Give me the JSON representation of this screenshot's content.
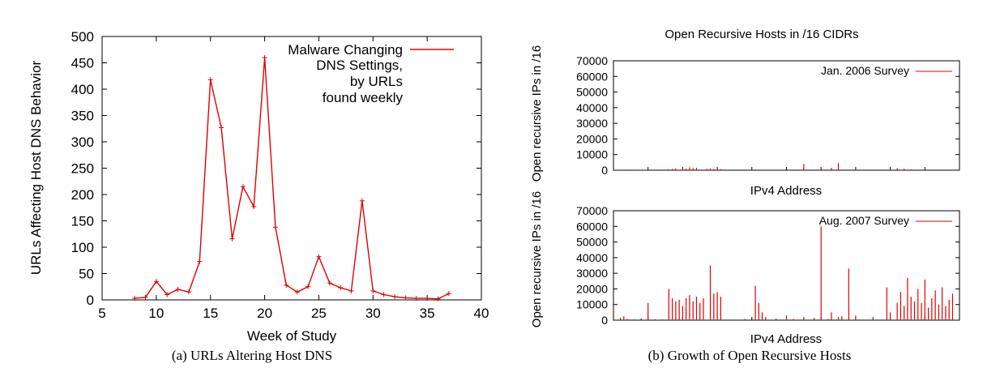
{
  "colors": {
    "series": "#e00000",
    "axis": "#000000"
  },
  "captions": {
    "a": "(a)  URLs Altering Host DNS",
    "b": "(b)  Growth of Open Recursive Hosts"
  },
  "chart_data": [
    {
      "type": "line",
      "title": "",
      "xlabel": "Week of Study",
      "ylabel": "URLs Affecting Host DNS Behavior",
      "xlim": [
        5,
        40
      ],
      "ylim": [
        0,
        500
      ],
      "xticks": [
        5,
        10,
        15,
        20,
        25,
        30,
        35,
        40
      ],
      "yticks": [
        0,
        50,
        100,
        150,
        200,
        250,
        300,
        350,
        400,
        450,
        500
      ],
      "legend_position": "top-right",
      "series": [
        {
          "name": "Malware Changing DNS Settings, by URLs found weekly",
          "legend_lines": [
            "Malware Changing",
            "DNS Settings,",
            "by URLs",
            "found weekly"
          ],
          "x": [
            8,
            9,
            10,
            11,
            12,
            13,
            14,
            15,
            16,
            17,
            18,
            19,
            20,
            21,
            22,
            23,
            24,
            25,
            26,
            27,
            28,
            29,
            30,
            31,
            32,
            33,
            34,
            35,
            36,
            37
          ],
          "y": [
            3,
            5,
            35,
            10,
            20,
            15,
            73,
            418,
            327,
            116,
            215,
            177,
            460,
            138,
            28,
            15,
            25,
            82,
            32,
            23,
            17,
            188,
            17,
            10,
            6,
            4,
            3,
            3,
            2,
            12
          ]
        }
      ]
    },
    {
      "type": "bar",
      "title": "Open Recursive Hosts in /16 CIDRs",
      "xlabel": "IPv4 Address",
      "ylabel": "Open recursive IPs in /16",
      "ylim": [
        0,
        70000
      ],
      "yticks": [
        0,
        10000,
        20000,
        30000,
        40000,
        50000,
        60000,
        70000
      ],
      "series": [
        {
          "name": "Jan. 2006 Survey",
          "x": [
            0.03,
            0.06,
            0.09,
            0.095,
            0.1,
            0.13,
            0.16,
            0.17,
            0.18,
            0.2,
            0.21,
            0.22,
            0.23,
            0.24,
            0.27,
            0.28,
            0.29,
            0.3,
            0.31,
            0.4,
            0.43,
            0.45,
            0.47,
            0.49,
            0.55,
            0.6,
            0.63,
            0.65,
            0.7,
            0.8,
            0.82,
            0.84,
            0.86,
            0.9,
            0.95
          ],
          "values": [
            200,
            150,
            300,
            250,
            200,
            400,
            600,
            800,
            1200,
            1500,
            1000,
            1800,
            1300,
            1600,
            900,
            1200,
            800,
            1100,
            700,
            200,
            150,
            200,
            100,
            150,
            4000,
            2000,
            1500,
            4500,
            300,
            800,
            1300,
            1000,
            600,
            500,
            400
          ]
        },
        {
          "name": "Aug. 2007 Survey",
          "x": [
            0.02,
            0.03,
            0.04,
            0.06,
            0.08,
            0.1,
            0.12,
            0.13,
            0.14,
            0.16,
            0.17,
            0.18,
            0.19,
            0.2,
            0.21,
            0.22,
            0.23,
            0.24,
            0.25,
            0.26,
            0.28,
            0.29,
            0.3,
            0.31,
            0.34,
            0.38,
            0.41,
            0.42,
            0.43,
            0.44,
            0.47,
            0.5,
            0.52,
            0.55,
            0.58,
            0.6,
            0.62,
            0.63,
            0.65,
            0.66,
            0.68,
            0.7,
            0.75,
            0.79,
            0.8,
            0.82,
            0.83,
            0.84,
            0.85,
            0.86,
            0.87,
            0.88,
            0.89,
            0.9,
            0.91,
            0.92,
            0.93,
            0.94,
            0.95,
            0.96,
            0.97,
            0.98
          ],
          "values": [
            1500,
            2500,
            800,
            500,
            1200,
            11000,
            600,
            300,
            500,
            20000,
            14000,
            12000,
            13000,
            9000,
            14000,
            16000,
            12000,
            15000,
            11000,
            14000,
            35000,
            17000,
            18000,
            15000,
            400,
            800,
            22000,
            11000,
            5000,
            2000,
            1000,
            3000,
            800,
            2000,
            1500,
            60000,
            800,
            5000,
            2000,
            2500,
            33000,
            3000,
            2000,
            21000,
            5000,
            11000,
            18000,
            9000,
            27000,
            15000,
            12000,
            20000,
            11000,
            26000,
            8000,
            14000,
            19000,
            10000,
            21000,
            9000,
            13000,
            17000
          ]
        }
      ]
    }
  ]
}
